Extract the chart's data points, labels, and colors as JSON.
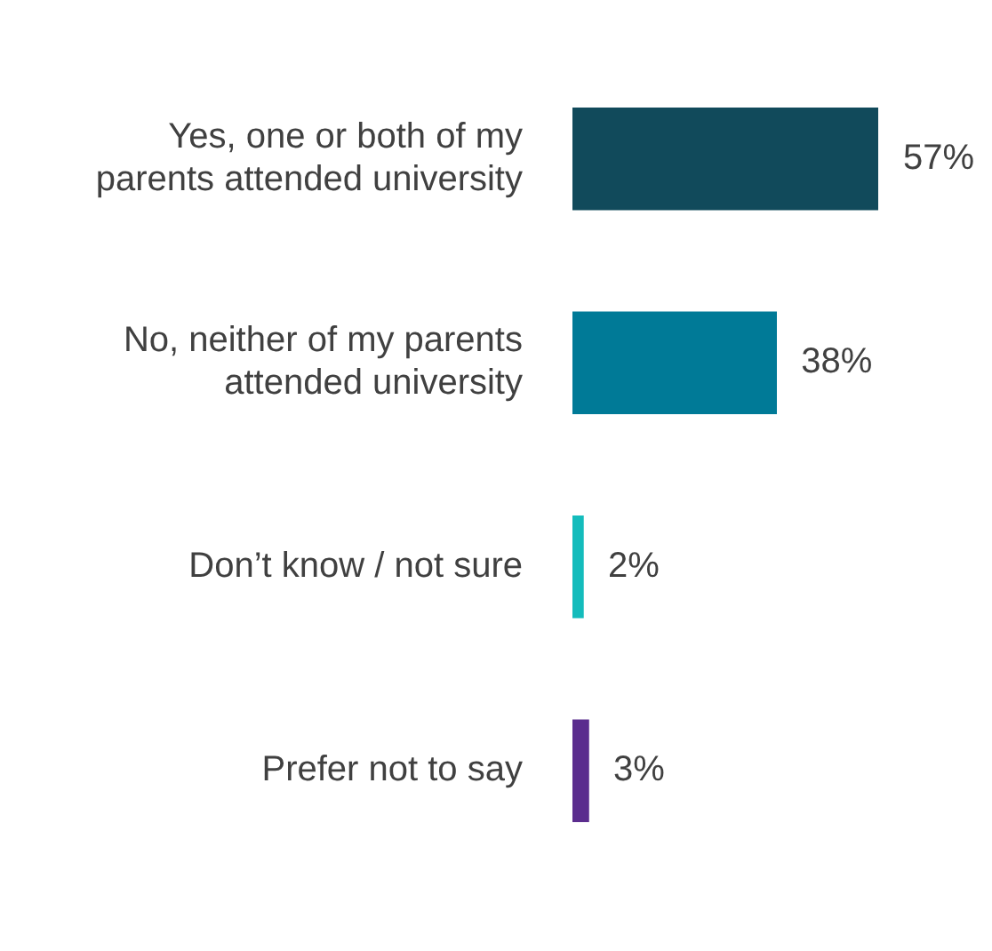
{
  "chart_data": {
    "type": "bar",
    "orientation": "horizontal",
    "categories": [
      "Yes, one or both of my parents attended university",
      "No, neither of my parents attended university",
      "Don’t know / not sure",
      "Prefer not to say"
    ],
    "values": [
      57,
      38,
      2,
      3
    ],
    "colors": [
      "#114a5b",
      "#007a97",
      "#14bcbc",
      "#5b2d8e"
    ],
    "value_labels": [
      "57%",
      "38%",
      "2%",
      "3%"
    ],
    "legend": false
  }
}
